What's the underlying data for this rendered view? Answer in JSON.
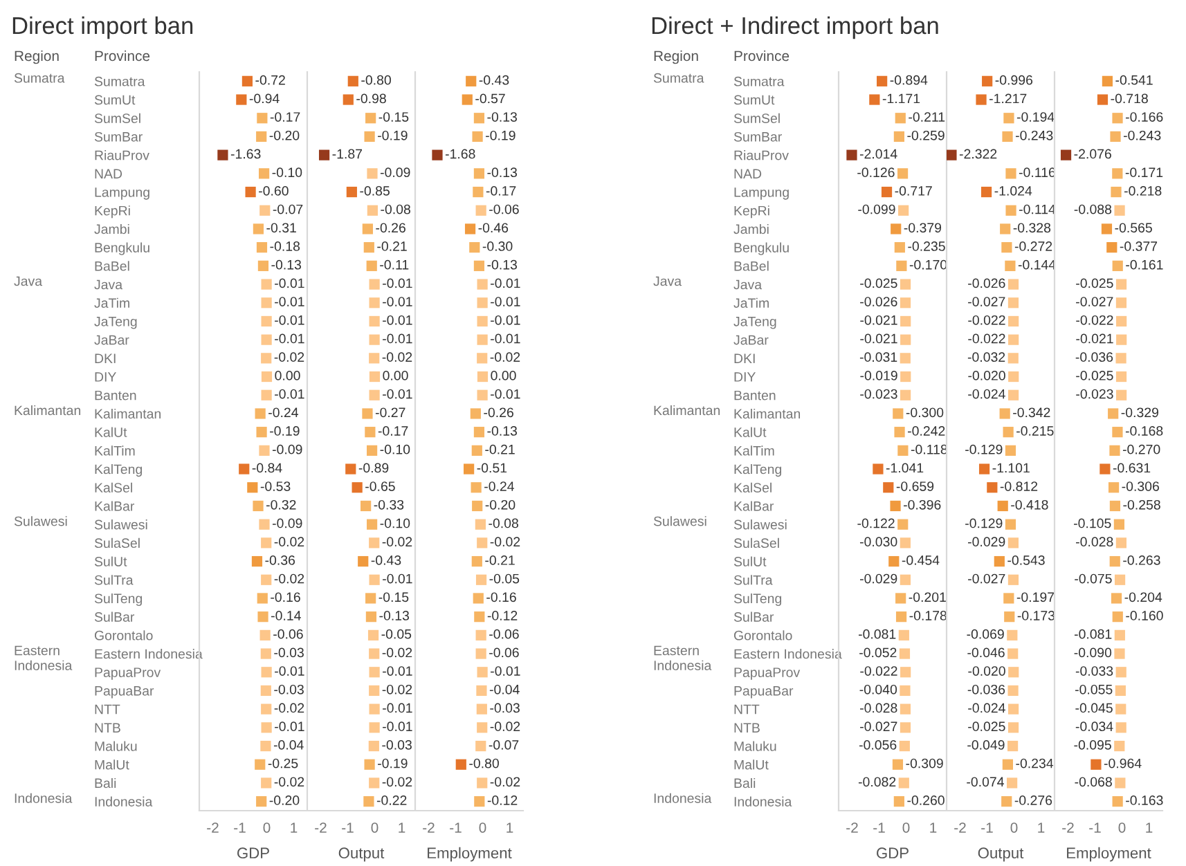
{
  "chart_data": [
    {
      "type": "scatter",
      "orientation": "horizontal",
      "title": "Direct import ban",
      "xlabel": "GDP",
      "ylabel": "Province",
      "marker": "square",
      "xlim": [
        -2.5,
        1.5
      ],
      "xticks": [
        -2,
        -1,
        0,
        1
      ],
      "categories": [
        "Sumatra",
        "SumUt",
        "SumSel",
        "SumBar",
        "RiauProv",
        "NAD",
        "Lampung",
        "KepRi",
        "Jambi",
        "Bengkulu",
        "BaBel",
        "Java",
        "JaTim",
        "JaTeng",
        "JaBar",
        "DKI",
        "DIY",
        "Banten",
        "Kalimantan",
        "KalUt",
        "KalTim",
        "KalTeng",
        "KalSel",
        "KalBar",
        "Sulawesi",
        "SulaSel",
        "SulUt",
        "SulTra",
        "SulTeng",
        "SulBar",
        "Gorontalo",
        "Eastern Indonesia",
        "PapuaProv",
        "PapuaBar",
        "NTT",
        "NTB",
        "Maluku",
        "MalUt",
        "Bali",
        "Indonesia"
      ],
      "values": [
        -0.72,
        -0.94,
        -0.17,
        -0.2,
        -1.63,
        -0.1,
        -0.6,
        -0.07,
        -0.31,
        -0.18,
        -0.13,
        -0.01,
        -0.01,
        -0.01,
        -0.01,
        -0.02,
        0.0,
        -0.01,
        -0.24,
        -0.19,
        -0.09,
        -0.84,
        -0.53,
        -0.32,
        -0.09,
        -0.02,
        -0.36,
        -0.02,
        -0.16,
        -0.14,
        -0.06,
        -0.03,
        -0.01,
        -0.03,
        -0.02,
        -0.01,
        -0.04,
        -0.25,
        -0.02,
        -0.2
      ],
      "value_labels": [
        "-0.72",
        "-0.94",
        "-0.17",
        "-0.20",
        "-1.63",
        "-0.10",
        "-0.60",
        "-0.07",
        "-0.31",
        "-0.18",
        "-0.13",
        "-0.01",
        "-0.01",
        "-0.01",
        "-0.01",
        "-0.02",
        "0.00",
        "-0.01",
        "-0.24",
        "-0.19",
        "-0.09",
        "-0.84",
        "-0.53",
        "-0.32",
        "-0.09",
        "-0.02",
        "-0.36",
        "-0.02",
        "-0.16",
        "-0.14",
        "-0.06",
        "-0.03",
        "-0.01",
        "-0.03",
        "-0.02",
        "-0.01",
        "-0.04",
        "-0.25",
        "-0.02",
        "-0.20"
      ],
      "colors": [
        "#e5742a",
        "#e5742a",
        "#f6b462",
        "#f6b462",
        "#963a1c",
        "#f6b462",
        "#e5742a",
        "#fdc68a",
        "#f6b462",
        "#f6b462",
        "#f6b462",
        "#fdc68a",
        "#fdc68a",
        "#fdc68a",
        "#fdc68a",
        "#fdc68a",
        "#fdc68a",
        "#fdc68a",
        "#f6b462",
        "#f6b462",
        "#fdc68a",
        "#e5742a",
        "#f09a3e",
        "#f6b462",
        "#fdc68a",
        "#fdc68a",
        "#f09a3e",
        "#fdc68a",
        "#f6b462",
        "#f6b462",
        "#fdc68a",
        "#fdc68a",
        "#fdc68a",
        "#fdc68a",
        "#fdc68a",
        "#fdc68a",
        "#fdc68a",
        "#f6b462",
        "#fdc68a",
        "#f6b462"
      ],
      "annotations": [
        "Region",
        "Sumatra",
        "Java",
        "Kalimantan",
        "Sulawesi",
        "Eastern\nIndonesia",
        "Indonesia"
      ]
    },
    {
      "type": "scatter",
      "orientation": "horizontal",
      "xlabel": "Output",
      "marker": "square",
      "xlim": [
        -2.5,
        1.5
      ],
      "xticks": [
        -2,
        -1,
        0,
        1
      ],
      "tick_labels": "x",
      "categories": [
        null,
        null,
        null,
        null,
        null,
        null,
        null,
        null,
        null,
        null,
        null,
        null,
        null,
        null,
        null,
        null,
        null,
        null,
        null,
        null,
        null,
        null,
        null,
        null,
        null,
        null,
        null,
        null,
        null,
        null,
        null,
        null,
        null,
        null,
        null,
        null,
        null,
        null,
        null,
        null
      ],
      "values": [
        -0.8,
        -0.98,
        -0.15,
        -0.19,
        -1.87,
        -0.09,
        -0.85,
        -0.08,
        -0.26,
        -0.21,
        -0.11,
        -0.01,
        -0.01,
        -0.01,
        -0.01,
        -0.02,
        0.0,
        -0.01,
        -0.27,
        -0.17,
        -0.1,
        -0.89,
        -0.65,
        -0.33,
        -0.1,
        -0.02,
        -0.43,
        -0.01,
        -0.15,
        -0.13,
        -0.05,
        -0.02,
        -0.01,
        -0.02,
        -0.01,
        -0.01,
        -0.03,
        -0.19,
        -0.02,
        -0.22
      ],
      "value_labels": [
        "-0.80",
        "-0.98",
        "-0.15",
        "-0.19",
        "-1.87",
        "-0.09",
        "-0.85",
        "-0.08",
        "-0.26",
        "-0.21",
        "-0.11",
        "-0.01",
        "-0.01",
        "-0.01",
        "-0.01",
        "-0.02",
        "0.00",
        "-0.01",
        "-0.27",
        "-0.17",
        "-0.10",
        "-0.89",
        "-0.65",
        "-0.33",
        "-0.10",
        "-0.02",
        "-0.43",
        "-0.01",
        "-0.15",
        "-0.13",
        "-0.05",
        "-0.02",
        "-0.01",
        "-0.02",
        "-0.01",
        "-0.01",
        "-0.03",
        "-0.19",
        "-0.02",
        "-0.22"
      ],
      "colors": [
        "#e5742a",
        "#e5742a",
        "#f6b462",
        "#f6b462",
        "#963a1c",
        "#fdc68a",
        "#e5742a",
        "#fdc68a",
        "#f6b462",
        "#f6b462",
        "#f6b462",
        "#fdc68a",
        "#fdc68a",
        "#fdc68a",
        "#fdc68a",
        "#fdc68a",
        "#fdc68a",
        "#fdc68a",
        "#f6b462",
        "#f6b462",
        "#f6b462",
        "#e5742a",
        "#e5742a",
        "#f6b462",
        "#f6b462",
        "#fdc68a",
        "#f09a3e",
        "#fdc68a",
        "#f6b462",
        "#f6b462",
        "#fdc68a",
        "#fdc68a",
        "#fdc68a",
        "#fdc68a",
        "#fdc68a",
        "#fdc68a",
        "#fdc68a",
        "#f6b462",
        "#fdc68a",
        "#f6b462"
      ]
    },
    {
      "type": "scatter",
      "orientation": "horizontal",
      "xlabel": "Employment",
      "marker": "square",
      "xlim": [
        -2.5,
        1.5
      ],
      "xticks": [
        -2,
        -1,
        0,
        1
      ],
      "tick_labels": "x",
      "categories": [
        null,
        null,
        null,
        null,
        null,
        null,
        null,
        null,
        null,
        null,
        null,
        null,
        null,
        null,
        null,
        null,
        null,
        null,
        null,
        null,
        null,
        null,
        null,
        null,
        null,
        null,
        null,
        null,
        null,
        null,
        null,
        null,
        null,
        null,
        null,
        null,
        null,
        null,
        null,
        null
      ],
      "values": [
        -0.43,
        -0.57,
        -0.13,
        -0.19,
        -1.68,
        -0.13,
        -0.17,
        -0.06,
        -0.46,
        -0.3,
        -0.13,
        -0.01,
        -0.01,
        -0.01,
        -0.01,
        -0.02,
        0.0,
        -0.01,
        -0.26,
        -0.13,
        -0.21,
        -0.51,
        -0.24,
        -0.2,
        -0.08,
        -0.02,
        -0.21,
        -0.05,
        -0.16,
        -0.12,
        -0.06,
        -0.06,
        -0.01,
        -0.04,
        -0.03,
        -0.02,
        -0.07,
        -0.8,
        -0.02,
        -0.12
      ],
      "value_labels": [
        "-0.43",
        "-0.57",
        "-0.13",
        "-0.19",
        "-1.68",
        "-0.13",
        "-0.17",
        "-0.06",
        "-0.46",
        "-0.30",
        "-0.13",
        "-0.01",
        "-0.01",
        "-0.01",
        "-0.01",
        "-0.02",
        "0.00",
        "-0.01",
        "-0.26",
        "-0.13",
        "-0.21",
        "-0.51",
        "-0.24",
        "-0.20",
        "-0.08",
        "-0.02",
        "-0.21",
        "-0.05",
        "-0.16",
        "-0.12",
        "-0.06",
        "-0.06",
        "-0.01",
        "-0.04",
        "-0.03",
        "-0.02",
        "-0.07",
        "-0.80",
        "-0.02",
        "-0.12"
      ],
      "colors": [
        "#f09a3e",
        "#f09a3e",
        "#f6b462",
        "#f6b462",
        "#963a1c",
        "#f6b462",
        "#f6b462",
        "#fdc68a",
        "#f09a3e",
        "#f6b462",
        "#f6b462",
        "#fdc68a",
        "#fdc68a",
        "#fdc68a",
        "#fdc68a",
        "#fdc68a",
        "#fdc68a",
        "#fdc68a",
        "#f6b462",
        "#f6b462",
        "#f6b462",
        "#f09a3e",
        "#f6b462",
        "#f6b462",
        "#fdc68a",
        "#fdc68a",
        "#f6b462",
        "#fdc68a",
        "#f6b462",
        "#f6b462",
        "#fdc68a",
        "#fdc68a",
        "#fdc68a",
        "#fdc68a",
        "#fdc68a",
        "#fdc68a",
        "#fdc68a",
        "#e5742a",
        "#fdc68a",
        "#f6b462"
      ]
    },
    {
      "type": "scatter",
      "orientation": "horizontal",
      "title": "Direct + Indirect import ban",
      "xlabel": "GDP",
      "ylabel": "Province",
      "marker": "square",
      "xlim": [
        -2.5,
        1.5
      ],
      "xticks": [
        -2,
        -1,
        0,
        1
      ],
      "categories": [
        "Sumatra",
        "SumUt",
        "SumSel",
        "SumBar",
        "RiauProv",
        "NAD",
        "Lampung",
        "KepRi",
        "Jambi",
        "Bengkulu",
        "BaBel",
        "Java",
        "JaTim",
        "JaTeng",
        "JaBar",
        "DKI",
        "DIY",
        "Banten",
        "Kalimantan",
        "KalUt",
        "KalTim",
        "KalTeng",
        "KalSel",
        "KalBar",
        "Sulawesi",
        "SulaSel",
        "SulUt",
        "SulTra",
        "SulTeng",
        "SulBar",
        "Gorontalo",
        "Eastern Indonesia",
        "PapuaProv",
        "PapuaBar",
        "NTT",
        "NTB",
        "Maluku",
        "MalUt",
        "Bali",
        "Indonesia"
      ],
      "values": [
        -0.894,
        -1.171,
        -0.211,
        -0.259,
        -2.014,
        -0.126,
        -0.717,
        -0.099,
        -0.379,
        -0.235,
        -0.17,
        -0.025,
        -0.026,
        -0.021,
        -0.021,
        -0.031,
        -0.019,
        -0.023,
        -0.3,
        -0.242,
        -0.118,
        -1.041,
        -0.659,
        -0.396,
        -0.122,
        -0.03,
        -0.454,
        -0.029,
        -0.201,
        -0.178,
        -0.081,
        -0.052,
        -0.022,
        -0.04,
        -0.028,
        -0.027,
        -0.056,
        -0.309,
        -0.082,
        -0.26
      ],
      "value_labels": [
        "-0.894",
        "-1.171",
        "-0.211",
        "-0.259",
        "-2.014",
        "-0.126",
        "-0.717",
        "-0.099",
        "-0.379",
        "-0.235",
        "-0.170",
        "-0.025",
        "-0.026",
        "-0.021",
        "-0.021",
        "-0.031",
        "-0.019",
        "-0.023",
        "-0.300",
        "-0.242",
        "-0.118",
        "-1.041",
        "-0.659",
        "-0.396",
        "-0.122",
        "-0.030",
        "-0.454",
        "-0.029",
        "-0.201",
        "-0.178",
        "-0.081",
        "-0.052",
        "-0.022",
        "-0.040",
        "-0.028",
        "-0.027",
        "-0.056",
        "-0.309",
        "-0.082",
        "-0.260"
      ],
      "colors": [
        "#e5742a",
        "#e5742a",
        "#f6b462",
        "#f6b462",
        "#963a1c",
        "#f6b462",
        "#e5742a",
        "#fdc68a",
        "#f09a3e",
        "#f6b462",
        "#f6b462",
        "#fdc68a",
        "#fdc68a",
        "#fdc68a",
        "#fdc68a",
        "#fdc68a",
        "#fdc68a",
        "#fdc68a",
        "#f6b462",
        "#f6b462",
        "#f6b462",
        "#e5742a",
        "#e5742a",
        "#f09a3e",
        "#f6b462",
        "#fdc68a",
        "#f09a3e",
        "#fdc68a",
        "#f6b462",
        "#f6b462",
        "#fdc68a",
        "#fdc68a",
        "#fdc68a",
        "#fdc68a",
        "#fdc68a",
        "#fdc68a",
        "#fdc68a",
        "#f6b462",
        "#fdc68a",
        "#f6b462"
      ],
      "annotations": [
        "Region",
        "Sumatra",
        "Java",
        "Kalimantan",
        "Sulawesi",
        "Eastern\nIndonesia",
        "Indonesia"
      ]
    },
    {
      "type": "scatter",
      "orientation": "horizontal",
      "xlabel": "Output",
      "marker": "square",
      "xlim": [
        -2.5,
        1.5
      ],
      "xticks": [
        -2,
        -1,
        0,
        1
      ],
      "tick_labels": "x",
      "categories": [
        null,
        null,
        null,
        null,
        null,
        null,
        null,
        null,
        null,
        null,
        null,
        null,
        null,
        null,
        null,
        null,
        null,
        null,
        null,
        null,
        null,
        null,
        null,
        null,
        null,
        null,
        null,
        null,
        null,
        null,
        null,
        null,
        null,
        null,
        null,
        null,
        null,
        null,
        null,
        null
      ],
      "values": [
        -0.996,
        -1.217,
        -0.194,
        -0.243,
        -2.322,
        -0.116,
        -1.024,
        -0.114,
        -0.328,
        -0.272,
        -0.144,
        -0.026,
        -0.027,
        -0.022,
        -0.022,
        -0.032,
        -0.02,
        -0.024,
        -0.342,
        -0.215,
        -0.129,
        -1.101,
        -0.812,
        -0.418,
        -0.129,
        -0.029,
        -0.543,
        -0.027,
        -0.197,
        -0.173,
        -0.069,
        -0.046,
        -0.02,
        -0.036,
        -0.024,
        -0.025,
        -0.049,
        -0.234,
        -0.074,
        -0.276
      ],
      "value_labels": [
        "-0.996",
        "-1.217",
        "-0.194",
        "-0.243",
        "-2.322",
        "-0.116",
        "-1.024",
        "-0.114",
        "-0.328",
        "-0.272",
        "-0.144",
        "-0.026",
        "-0.027",
        "-0.022",
        "-0.022",
        "-0.032",
        "-0.020",
        "-0.024",
        "-0.342",
        "-0.215",
        "-0.129",
        "-1.101",
        "-0.812",
        "-0.418",
        "-0.129",
        "-0.029",
        "-0.543",
        "-0.027",
        "-0.197",
        "-0.173",
        "-0.069",
        "-0.046",
        "-0.020",
        "-0.036",
        "-0.024",
        "-0.025",
        "-0.049",
        "-0.234",
        "-0.074",
        "-0.276"
      ],
      "colors": [
        "#e5742a",
        "#e5742a",
        "#f6b462",
        "#f6b462",
        "#963a1c",
        "#f6b462",
        "#e5742a",
        "#f6b462",
        "#f6b462",
        "#f6b462",
        "#f6b462",
        "#fdc68a",
        "#fdc68a",
        "#fdc68a",
        "#fdc68a",
        "#fdc68a",
        "#fdc68a",
        "#fdc68a",
        "#f6b462",
        "#f6b462",
        "#f6b462",
        "#e5742a",
        "#e5742a",
        "#f09a3e",
        "#f6b462",
        "#fdc68a",
        "#f09a3e",
        "#fdc68a",
        "#f6b462",
        "#f6b462",
        "#fdc68a",
        "#fdc68a",
        "#fdc68a",
        "#fdc68a",
        "#fdc68a",
        "#fdc68a",
        "#fdc68a",
        "#f6b462",
        "#fdc68a",
        "#f6b462"
      ]
    },
    {
      "type": "scatter",
      "orientation": "horizontal",
      "xlabel": "Employment",
      "marker": "square",
      "xlim": [
        -2.5,
        1.5
      ],
      "xticks": [
        -2,
        -1,
        0,
        1
      ],
      "tick_labels": "x",
      "categories": [
        null,
        null,
        null,
        null,
        null,
        null,
        null,
        null,
        null,
        null,
        null,
        null,
        null,
        null,
        null,
        null,
        null,
        null,
        null,
        null,
        null,
        null,
        null,
        null,
        null,
        null,
        null,
        null,
        null,
        null,
        null,
        null,
        null,
        null,
        null,
        null,
        null,
        null,
        null,
        null
      ],
      "values": [
        -0.541,
        -0.718,
        -0.166,
        -0.243,
        -2.076,
        -0.171,
        -0.218,
        -0.088,
        -0.565,
        -0.377,
        -0.161,
        -0.025,
        -0.027,
        -0.022,
        -0.021,
        -0.036,
        -0.025,
        -0.023,
        -0.329,
        -0.168,
        -0.27,
        -0.631,
        -0.306,
        -0.258,
        -0.105,
        -0.028,
        -0.263,
        -0.075,
        -0.204,
        -0.16,
        -0.081,
        -0.09,
        -0.033,
        -0.055,
        -0.045,
        -0.034,
        -0.095,
        -0.964,
        -0.068,
        -0.163
      ],
      "value_labels": [
        "-0.541",
        "-0.718",
        "-0.166",
        "-0.243",
        "-2.076",
        "-0.171",
        "-0.218",
        "-0.088",
        "-0.565",
        "-0.377",
        "-0.161",
        "-0.025",
        "-0.027",
        "-0.022",
        "-0.021",
        "-0.036",
        "-0.025",
        "-0.023",
        "-0.329",
        "-0.168",
        "-0.270",
        "-0.631",
        "-0.306",
        "-0.258",
        "-0.105",
        "-0.028",
        "-0.263",
        "-0.075",
        "-0.204",
        "-0.160",
        "-0.081",
        "-0.090",
        "-0.033",
        "-0.055",
        "-0.045",
        "-0.034",
        "-0.095",
        "-0.964",
        "-0.068",
        "-0.163"
      ],
      "colors": [
        "#f09a3e",
        "#e5742a",
        "#f6b462",
        "#f6b462",
        "#963a1c",
        "#f6b462",
        "#f6b462",
        "#fdc68a",
        "#f09a3e",
        "#f09a3e",
        "#f6b462",
        "#fdc68a",
        "#fdc68a",
        "#fdc68a",
        "#fdc68a",
        "#fdc68a",
        "#fdc68a",
        "#fdc68a",
        "#f6b462",
        "#f6b462",
        "#f6b462",
        "#e5742a",
        "#f6b462",
        "#f6b462",
        "#f6b462",
        "#fdc68a",
        "#f6b462",
        "#fdc68a",
        "#f6b462",
        "#f6b462",
        "#fdc68a",
        "#fdc68a",
        "#fdc68a",
        "#fdc68a",
        "#fdc68a",
        "#fdc68a",
        "#fdc68a",
        "#e5742a",
        "#fdc68a",
        "#f6b462"
      ]
    }
  ]
}
